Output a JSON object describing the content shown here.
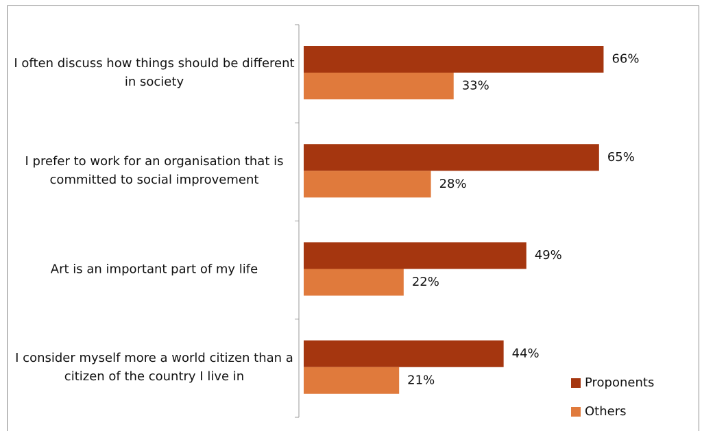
{
  "chart_data": {
    "type": "bar",
    "orientation": "horizontal",
    "categories": [
      "I often discuss how things should be different in society",
      "I prefer to work for an organisation that is committed to social improvement",
      "Art is an important part of my life",
      "I consider myself more a world citizen than a citizen of the country I live in"
    ],
    "series": [
      {
        "name": "Proponents",
        "color": "#a5360f",
        "values": [
          66,
          65,
          49,
          44
        ],
        "value_labels": [
          "66%",
          "65%",
          "49%",
          "44%"
        ]
      },
      {
        "name": "Others",
        "color": "#e07a3c",
        "values": [
          33,
          28,
          22,
          21
        ],
        "value_labels": [
          "33%",
          "28%",
          "22%",
          "21%"
        ]
      }
    ],
    "xlim": [
      0,
      86
    ],
    "legend": "bottom-right"
  }
}
